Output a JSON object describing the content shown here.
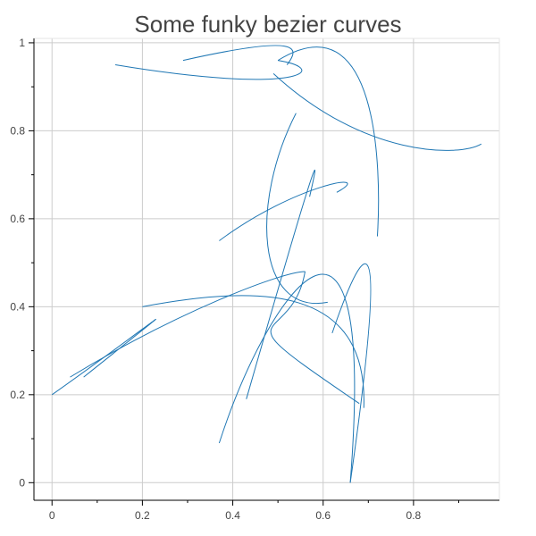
{
  "chart_data": {
    "type": "line",
    "title": "Some funky bezier curves",
    "xlabel": "",
    "ylabel": "",
    "xlim": [
      -0.04,
      0.99
    ],
    "ylim": [
      -0.04,
      1.01
    ],
    "grid": true,
    "legend": "none",
    "color": "#1f77b4",
    "x_ticks": [
      {
        "value": 0,
        "label": "0"
      },
      {
        "value": 0.2,
        "label": "0.2"
      },
      {
        "value": 0.4,
        "label": "0.4"
      },
      {
        "value": 0.6,
        "label": "0.6"
      },
      {
        "value": 0.8,
        "label": "0.8"
      }
    ],
    "y_ticks": [
      {
        "value": 0,
        "label": "0"
      },
      {
        "value": 0.2,
        "label": "0.2"
      },
      {
        "value": 0.4,
        "label": "0.4"
      },
      {
        "value": 0.6,
        "label": "0.6"
      },
      {
        "value": 0.8,
        "label": "0.8"
      },
      {
        "value": 1,
        "label": "1"
      }
    ],
    "series": [
      {
        "p0": [
          0.14,
          0.95
        ],
        "c1": [
          0.55,
          0.88
        ],
        "c2": [
          0.62,
          0.94
        ],
        "p1": [
          0.5,
          0.96
        ]
      },
      {
        "p0": [
          0.29,
          0.96
        ],
        "c1": [
          0.55,
          1.02
        ],
        "c2": [
          0.55,
          0.99
        ],
        "p1": [
          0.52,
          0.95
        ]
      },
      {
        "p0": [
          0.49,
          0.93
        ],
        "c1": [
          0.69,
          0.74
        ],
        "c2": [
          0.9,
          0.74
        ],
        "p1": [
          0.95,
          0.77
        ]
      },
      {
        "p0": [
          0.5,
          0.96
        ],
        "c1": [
          0.72,
          1.1
        ],
        "c2": [
          0.73,
          0.72
        ],
        "p1": [
          0.72,
          0.56
        ]
      },
      {
        "p0": [
          0.54,
          0.84
        ],
        "c1": [
          0.44,
          0.64
        ],
        "c2": [
          0.45,
          0.38
        ],
        "p1": [
          0.61,
          0.41
        ]
      },
      {
        "p0": [
          0.37,
          0.55
        ],
        "c1": [
          0.54,
          0.68
        ],
        "c2": [
          0.72,
          0.71
        ],
        "p1": [
          0.63,
          0.66
        ]
      },
      {
        "p0": [
          0.43,
          0.19
        ],
        "c1": [
          0.5,
          0.44
        ],
        "c2": [
          0.62,
          0.87
        ],
        "p1": [
          0.57,
          0.65
        ]
      },
      {
        "p0": [
          0.37,
          0.09
        ],
        "c1": [
          0.48,
          0.44
        ],
        "c2": [
          0.72,
          0.78
        ],
        "p1": [
          0.66,
          0.0
        ]
      },
      {
        "p0": [
          0.0,
          0.2
        ],
        "c1": [
          0.22,
          0.36
        ],
        "c2": [
          0.35,
          0.47
        ],
        "p1": [
          0.07,
          0.24
        ]
      },
      {
        "p0": [
          0.04,
          0.24
        ],
        "c1": [
          0.28,
          0.39
        ],
        "c2": [
          0.51,
          0.48
        ],
        "p1": [
          0.56,
          0.48
        ]
      },
      {
        "p0": [
          0.56,
          0.48
        ],
        "c1": [
          0.53,
          0.3
        ],
        "c2": [
          0.35,
          0.41
        ],
        "p1": [
          0.68,
          0.18
        ]
      },
      {
        "p0": [
          0.2,
          0.4
        ],
        "c1": [
          0.46,
          0.45
        ],
        "c2": [
          0.7,
          0.45
        ],
        "p1": [
          0.69,
          0.17
        ]
      },
      {
        "p0": [
          0.62,
          0.34
        ],
        "c1": [
          0.67,
          0.49
        ],
        "c2": [
          0.76,
          0.72
        ],
        "p1": [
          0.66,
          0.0
        ]
      }
    ]
  }
}
